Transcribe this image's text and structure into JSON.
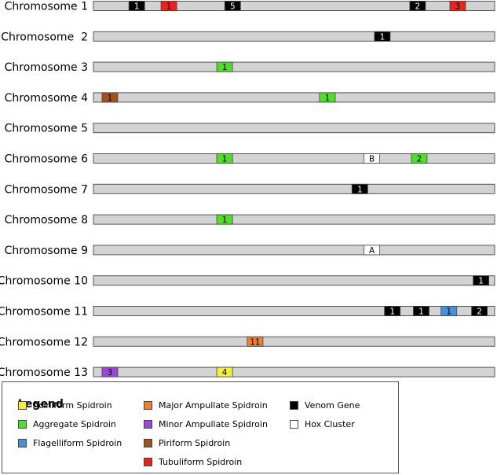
{
  "chromosomes": [
    {
      "label": "Chromosome 1",
      "features": [
        {
          "pos": 0.108,
          "type": "venom",
          "text": "1"
        },
        {
          "pos": 0.188,
          "type": "tubuliform",
          "text": "1"
        },
        {
          "pos": 0.347,
          "type": "venom",
          "text": "5"
        },
        {
          "pos": 0.808,
          "type": "venom",
          "text": "2"
        },
        {
          "pos": 0.908,
          "type": "tubuliform",
          "text": "3"
        }
      ]
    },
    {
      "label": "Chromosome  2",
      "features": [
        {
          "pos": 0.72,
          "type": "venom",
          "text": "1"
        }
      ]
    },
    {
      "label": "Chromosome 3",
      "features": [
        {
          "pos": 0.327,
          "type": "aggregate",
          "text": "1"
        }
      ]
    },
    {
      "label": "Chromosome 4",
      "features": [
        {
          "pos": 0.041,
          "type": "piriform",
          "text": "1"
        },
        {
          "pos": 0.583,
          "type": "aggregate",
          "text": "1"
        }
      ]
    },
    {
      "label": "Chromosome 5",
      "features": []
    },
    {
      "label": "Chromosome 6",
      "features": [
        {
          "pos": 0.327,
          "type": "aggregate",
          "text": "1"
        },
        {
          "pos": 0.694,
          "type": "hox",
          "text": "B"
        },
        {
          "pos": 0.812,
          "type": "aggregate",
          "text": "2"
        }
      ]
    },
    {
      "label": "Chromosome 7",
      "features": [
        {
          "pos": 0.664,
          "type": "venom",
          "text": "1"
        }
      ]
    },
    {
      "label": "Chromosome 8",
      "features": [
        {
          "pos": 0.327,
          "type": "aggregate",
          "text": "1"
        }
      ]
    },
    {
      "label": "Chromosome 9",
      "features": [
        {
          "pos": 0.694,
          "type": "hox",
          "text": "A"
        }
      ]
    },
    {
      "label": "Chromosome 10",
      "features": [
        {
          "pos": 0.966,
          "type": "venom",
          "text": "1"
        }
      ]
    },
    {
      "label": "Chromosome 11",
      "features": [
        {
          "pos": 0.745,
          "type": "venom",
          "text": "1"
        },
        {
          "pos": 0.817,
          "type": "venom",
          "text": "1"
        },
        {
          "pos": 0.886,
          "type": "flagelliform",
          "text": "1"
        },
        {
          "pos": 0.962,
          "type": "venom",
          "text": "2"
        }
      ]
    },
    {
      "label": "Chromosome 12",
      "features": [
        {
          "pos": 0.403,
          "type": "major",
          "text": "11"
        }
      ]
    },
    {
      "label": "Chromosome 13",
      "features": [
        {
          "pos": 0.041,
          "type": "minor",
          "text": "3"
        },
        {
          "pos": 0.327,
          "type": "aciniform",
          "text": "4"
        }
      ]
    }
  ],
  "feature_types": {
    "aciniform": {
      "label": "Aciniform Spidroin",
      "fill": "#f5ee3a",
      "text_color": "#000000"
    },
    "aggregate": {
      "label": "Aggregate Spidroin",
      "fill": "#52dd2a",
      "text_color": "#000000"
    },
    "flagelliform": {
      "label": "Flagelliform Spidroin",
      "fill": "#4a8fd6",
      "text_color": "#000000"
    },
    "major": {
      "label": "Major Ampullate Spidroin",
      "fill": "#ef7f2c",
      "text_color": "#000000"
    },
    "minor": {
      "label": "Minor Ampullate Spidroin",
      "fill": "#9b47d6",
      "text_color": "#000000"
    },
    "piriform": {
      "label": "Piriform Spidroin",
      "fill": "#a34f1e",
      "text_color": "#000000"
    },
    "tubuliform": {
      "label": "Tubuliform Spidroin",
      "fill": "#e8251c",
      "text_color": "#000000"
    },
    "venom": {
      "label": "Venom Gene",
      "fill": "#000000",
      "text_color": "#ffffff"
    },
    "hox": {
      "label": "Hox Cluster",
      "fill": "#ffffff",
      "text_color": "#000000"
    }
  },
  "chromosome_color": "#d3d3d3",
  "legend": {
    "title": "Legend",
    "columns": [
      [
        "aciniform",
        "aggregate",
        "flagelliform"
      ],
      [
        "major",
        "minor",
        "piriform",
        "tubuliform"
      ],
      [
        "venom",
        "hox"
      ]
    ]
  }
}
